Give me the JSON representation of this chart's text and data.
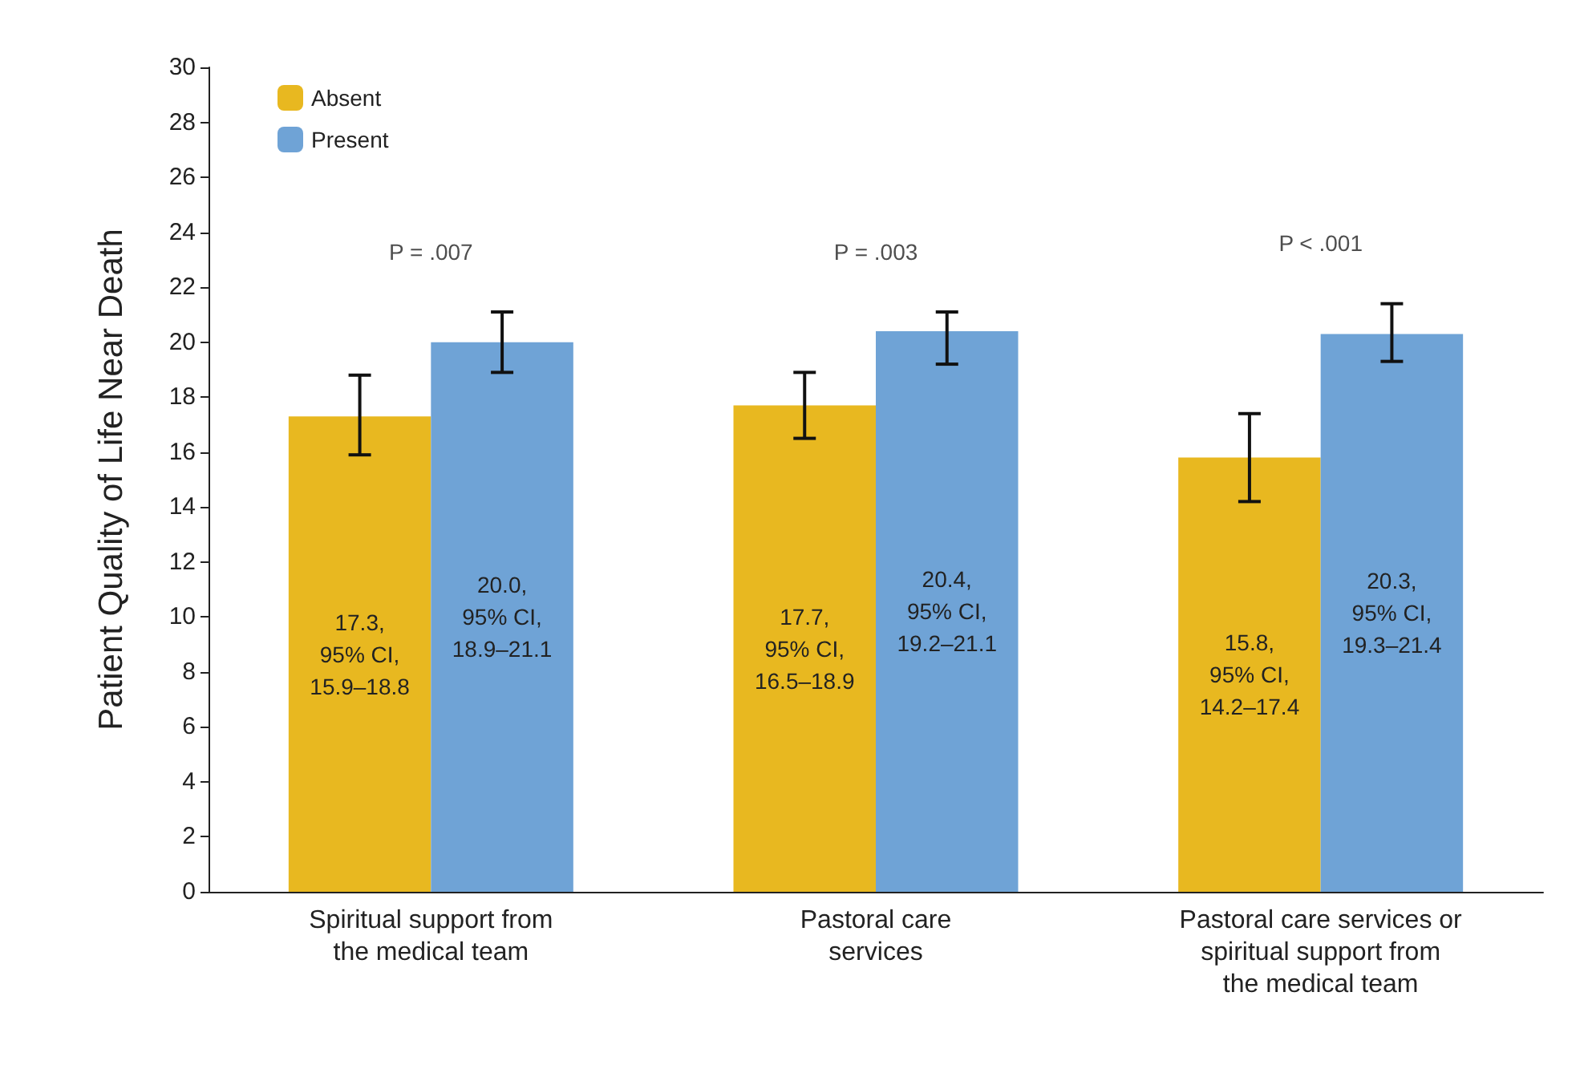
{
  "chart_data": {
    "type": "bar",
    "ylabel": "Patient Quality of Life Near Death",
    "categories": [
      "Spiritual support from\nthe medical team",
      "Pastoral care\nservices",
      "Pastoral care services or\nspiritual support from\nthe medical team"
    ],
    "series": [
      {
        "name": "Absent",
        "color": "#e8b820",
        "values": [
          17.3,
          17.7,
          15.8
        ],
        "errors": [
          [
            15.9,
            18.8
          ],
          [
            16.5,
            18.9
          ],
          [
            14.2,
            17.4
          ]
        ],
        "value_labels": [
          "17.3,\n95% CI,\n15.9–18.8",
          "17.7,\n95% CI,\n16.5–18.9",
          "15.8,\n95% CI,\n14.2–17.4"
        ]
      },
      {
        "name": "Present",
        "color": "#6fa3d6",
        "values": [
          20.0,
          20.4,
          20.3
        ],
        "errors": [
          [
            18.9,
            21.1
          ],
          [
            19.2,
            21.1
          ],
          [
            19.3,
            21.4
          ]
        ],
        "value_labels": [
          "20.0,\n95% CI,\n18.9–21.1",
          "20.4,\n95% CI,\n19.2–21.1",
          "20.3,\n95% CI,\n19.3–21.4"
        ]
      }
    ],
    "annotations": [
      "P = .007",
      "P = .003",
      "P < .001"
    ],
    "ylim": [
      0,
      30
    ],
    "yticks": [
      0,
      2,
      4,
      6,
      8,
      10,
      12,
      14,
      16,
      18,
      20,
      22,
      24,
      26,
      28,
      30
    ],
    "grid": false,
    "legend": "top left"
  }
}
